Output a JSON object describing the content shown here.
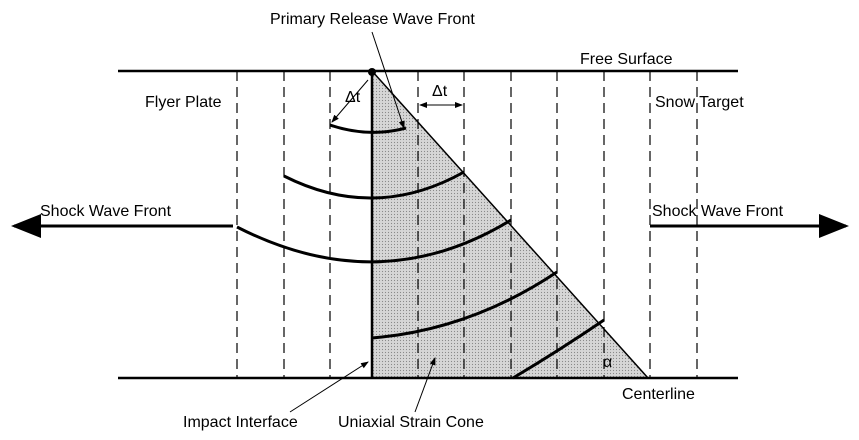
{
  "labels": {
    "primary_release": "Primary Release Wave Front",
    "free_surface": "Free Surface",
    "flyer_plate": "Flyer Plate",
    "snow_target": "Snow Target",
    "delta_t_left": "Δt",
    "delta_t_right": "Δt",
    "shock_left": "Shock Wave Front",
    "shock_right": "Shock Wave Front",
    "alpha": "α",
    "centerline": "Centerline",
    "impact_interface": "Impact Interface",
    "strain_cone": "Uniaxial Strain Cone"
  }
}
